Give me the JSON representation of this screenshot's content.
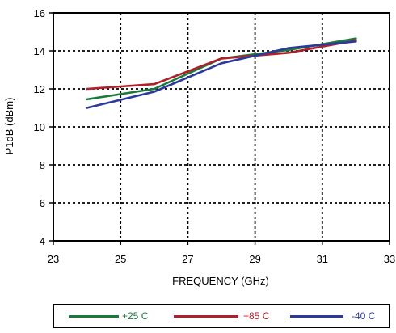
{
  "chart_data": {
    "type": "line",
    "title": "",
    "xlabel": "FREQUENCY (GHz)",
    "ylabel": "P1dB  (dBm)",
    "xlim": [
      23,
      33
    ],
    "ylim": [
      4,
      16
    ],
    "xticks": [
      23,
      25,
      27,
      29,
      31,
      33
    ],
    "yticks": [
      4,
      6,
      8,
      10,
      12,
      14,
      16
    ],
    "grid": true,
    "legend_position": "bottom",
    "series": [
      {
        "name": "+25 C",
        "color": "#1a7a3c",
        "x": [
          24,
          26,
          28,
          30,
          32
        ],
        "y": [
          11.45,
          12.0,
          13.6,
          14.05,
          14.65
        ]
      },
      {
        "name": "+85 C",
        "color": "#b0202a",
        "x": [
          24,
          26,
          28,
          30,
          32
        ],
        "y": [
          12.0,
          12.25,
          13.6,
          13.9,
          14.55
        ]
      },
      {
        "name": "-40 C",
        "color": "#2b3a9a",
        "x": [
          24,
          26,
          28,
          30,
          32
        ],
        "y": [
          11.0,
          11.85,
          13.35,
          14.15,
          14.5
        ]
      }
    ]
  }
}
